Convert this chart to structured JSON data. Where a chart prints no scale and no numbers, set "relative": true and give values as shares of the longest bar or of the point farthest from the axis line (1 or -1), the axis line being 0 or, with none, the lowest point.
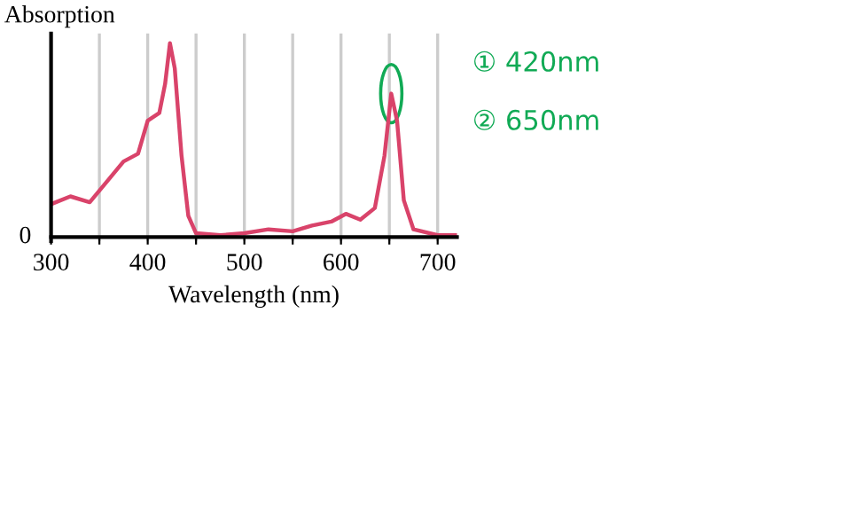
{
  "chart_data": {
    "type": "line",
    "relative": true,
    "ylabel": "Absorption",
    "xlabel": "Wavelength (nm)",
    "x": [
      300,
      320,
      340,
      360,
      375,
      390,
      400,
      412,
      418,
      423,
      428,
      435,
      442,
      450,
      475,
      500,
      525,
      550,
      570,
      590,
      605,
      620,
      635,
      645,
      652,
      658,
      665,
      675,
      700,
      720
    ],
    "series": [
      {
        "color": "#d9436a",
        "values": [
          0.17,
          0.21,
          0.18,
          0.3,
          0.39,
          0.43,
          0.6,
          0.64,
          0.79,
          1,
          0.87,
          0.42,
          0.11,
          0.02,
          0.01,
          0.02,
          0.04,
          0.03,
          0.06,
          0.08,
          0.12,
          0.09,
          0.15,
          0.42,
          0.74,
          0.6,
          0.19,
          0.04,
          0.01,
          0.01
        ]
      }
    ],
    "xlim": [
      300,
      720
    ],
    "xticks": [
      300,
      {
        "value": 350,
        "label": null
      },
      400,
      {
        "value": 450,
        "label": null
      },
      500,
      {
        "value": 550,
        "label": null
      },
      600,
      {
        "value": 650,
        "label": null
      },
      700
    ],
    "grid": "x",
    "legend": false,
    "marker": "none",
    "line_style": "solid",
    "annotations": [
      "0",
      "① 420nm",
      "② 650nm"
    ]
  }
}
